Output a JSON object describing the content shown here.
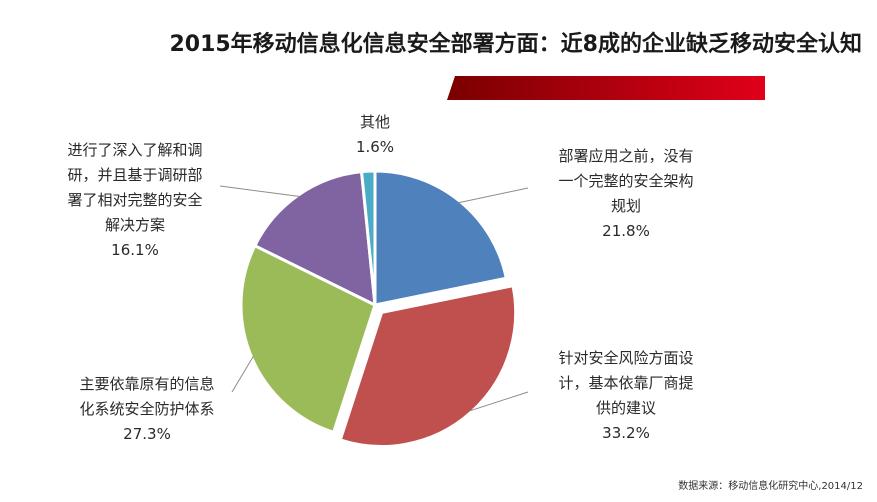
{
  "title": "2015年移动信息化信息安全部署方面：近8成的企业缺乏移动安全认知",
  "source": "数据来源：移动信息化研究中心,2014/12",
  "colors": {
    "accent_dark": "#7a0000",
    "accent_light": "#e0001a"
  },
  "chart_data": {
    "type": "pie",
    "title": "2015年移动信息化信息安全部署方面：近8成的企业缺乏移动安全认知",
    "start_angle_deg": 0,
    "direction": "clockwise",
    "slices": [
      {
        "label": "部署应用之前，没有一个完整的安全架构规划",
        "value": 21.8,
        "pct_text": "21.8%",
        "color": "#4f81bd",
        "explode": 0
      },
      {
        "label": "针对安全风险方面设计，基本依靠厂商提供的建议",
        "value": 33.2,
        "pct_text": "33.2%",
        "color": "#c0504d",
        "explode": 1
      },
      {
        "label": "主要依靠原有的信息化系统安全防护体系",
        "value": 27.3,
        "pct_text": "27.3%",
        "color": "#9bbb59",
        "explode": 0
      },
      {
        "label": "进行了深入了解和调研，并且基于调研部署了相对完整的安全解决方案",
        "value": 16.1,
        "pct_text": "16.1%",
        "color": "#8064a2",
        "explode": 0
      },
      {
        "label": "其他",
        "value": 1.6,
        "pct_text": "1.6%",
        "color": "#4bacc6",
        "explode": 0
      }
    ],
    "label_lines": [
      [
        "部署应用之前，没有",
        "一个完整的安全架构",
        "规划"
      ],
      [
        "针对安全风险方面设",
        "计，基本依靠厂商提",
        "供的建议"
      ],
      [
        "主要依靠原有的信息",
        "化系统安全防护体系"
      ],
      [
        "进行了深入了解和调",
        "研，并且基于调研部",
        "署了相对完整的安全",
        "解决方案"
      ],
      [
        "其他"
      ]
    ]
  }
}
